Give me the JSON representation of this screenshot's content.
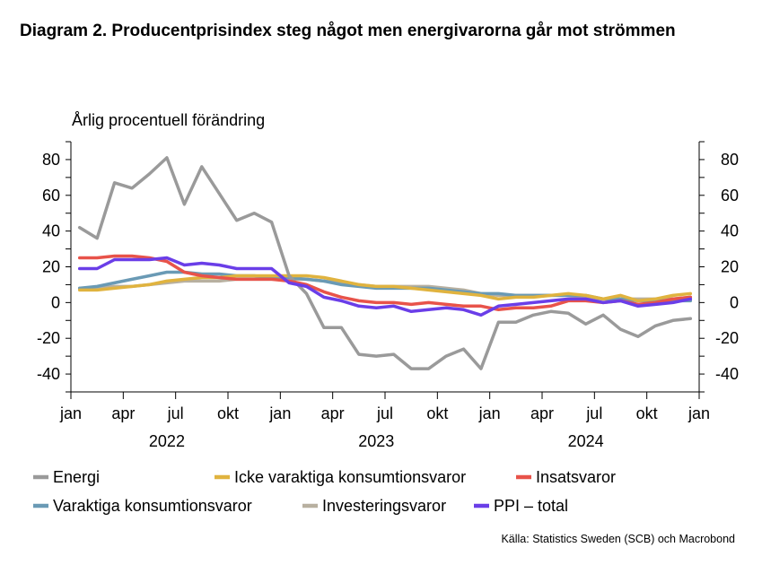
{
  "title": "Diagram 2. Producentprisindex steg något men energivarorna går mot strömmen",
  "source": "Källa: Statistics Sweden (SCB)  och Macrobond",
  "chart_data": {
    "type": "line",
    "ylabel": "Årlig procentuell förändring",
    "ylim": [
      -50,
      90
    ],
    "y_ticks": [
      80,
      60,
      40,
      20,
      0,
      -20,
      -40
    ],
    "y_tick_labels": [
      "80",
      "60",
      "40",
      "20",
      "0",
      "-20",
      "-40"
    ],
    "x_start": "2022-01",
    "x_ticks": [
      "jan",
      "apr",
      "jul",
      "okt",
      "jan",
      "apr",
      "jul",
      "okt",
      "jan",
      "apr",
      "jul",
      "okt",
      "jan"
    ],
    "years": [
      "2022",
      "2023",
      "2024"
    ],
    "grid": false,
    "legend_position": "bottom",
    "series": [
      {
        "name": "Energi",
        "color": "#9a9a9a",
        "values": [
          42,
          36,
          67,
          64,
          72,
          81,
          55,
          76,
          61,
          46,
          50,
          45,
          15,
          5,
          -14,
          -14,
          -29,
          -30,
          -29,
          -37,
          -37,
          -30,
          -26,
          -37,
          -11,
          -11,
          -7,
          -5,
          -6,
          -12,
          -7,
          -15,
          -19,
          -13,
          -10,
          -9
        ]
      },
      {
        "name": "Icke varaktiga konsumtionsvaror",
        "color": "#e0b33f",
        "values": [
          7,
          7,
          8,
          9,
          10,
          12,
          13,
          14,
          14,
          15,
          15,
          15,
          15,
          15,
          14,
          12,
          10,
          9,
          9,
          8,
          7,
          6,
          5,
          4,
          2,
          3,
          3,
          4,
          5,
          4,
          2,
          4,
          1,
          2,
          4,
          5
        ]
      },
      {
        "name": "Insatsvaror",
        "color": "#e8534a",
        "values": [
          25,
          25,
          26,
          26,
          25,
          23,
          17,
          15,
          14,
          13,
          13,
          13,
          12,
          10,
          6,
          3,
          1,
          0,
          0,
          -1,
          0,
          -1,
          -2,
          -2,
          -4,
          -3,
          -3,
          -2,
          1,
          1,
          0,
          1,
          -1,
          0,
          2,
          3
        ]
      },
      {
        "name": "Varaktiga konsumtionsvaror",
        "color": "#6a9ab5",
        "values": [
          8,
          9,
          11,
          13,
          15,
          17,
          17,
          16,
          16,
          15,
          15,
          14,
          14,
          13,
          12,
          10,
          9,
          8,
          8,
          8,
          8,
          7,
          6,
          5,
          5,
          4,
          4,
          4,
          4,
          4,
          2,
          2,
          1,
          1,
          1,
          1
        ]
      },
      {
        "name": "Investeringsvaror",
        "color": "#b8b0a0",
        "values": [
          8,
          8,
          9,
          9,
          10,
          11,
          12,
          12,
          12,
          13,
          13,
          13,
          13,
          13,
          12,
          11,
          10,
          9,
          9,
          9,
          9,
          8,
          7,
          5,
          4,
          4,
          4,
          4,
          4,
          3,
          2,
          2,
          2,
          2,
          2,
          3
        ]
      },
      {
        "name": "PPI - total",
        "color": "#6a3ee8",
        "values": [
          19,
          19,
          24,
          24,
          24,
          25,
          21,
          22,
          21,
          19,
          19,
          19,
          11,
          9,
          3,
          1,
          -2,
          -3,
          -2,
          -5,
          -4,
          -3,
          -4,
          -7,
          -2,
          -1,
          0,
          1,
          2,
          2,
          0,
          1,
          -2,
          -1,
          0,
          2
        ]
      }
    ]
  }
}
